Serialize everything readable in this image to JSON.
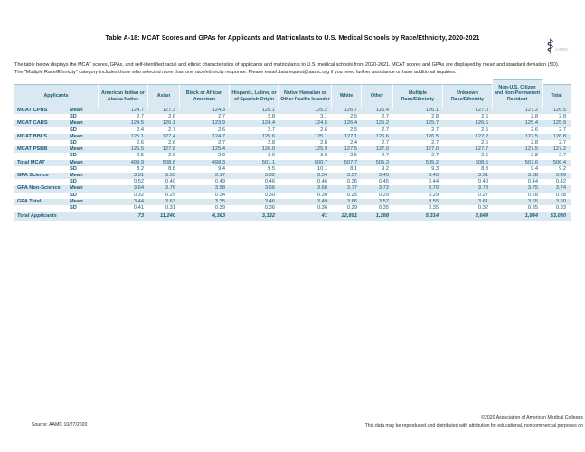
{
  "title": "Table A-18: MCAT Scores and GPAs for Applicants and Matriculants to U.S. Medical Schools by Race/Ethnicity, 2020-2021",
  "logo": {
    "text": "AAMC"
  },
  "intro": {
    "line1": "The table below displays the MCAT scores, GPAs, and self-identified racial and ethnic characteristics of applicants and matriculants to U.S. medical schools from 2020-2021. MCAT scores and GPAs are displayed by mean and standard deviation (SD).",
    "line2": "The \"Multiple Race/Ethnicity\" category includes those who selected more than one race/ethnicity response. Please email datarequest@aamc.org if you need further assistance or have additional inquiries."
  },
  "table": {
    "corner_header": "Applicants",
    "stat_labels": {
      "mean": "Mean",
      "sd": "SD"
    },
    "columns": [
      "American Indian or Alaska Native",
      "Asian",
      "Black or African American",
      "Hispanic, Latino, or of Spanish Origin",
      "Native Hawaiian or Other Pacific Islander",
      "White",
      "Other",
      "Multiple Race/Ethnicity",
      "Unknown Race/Ethnicity",
      "Non-U.S. Citizen and Non-Permanent Resident",
      "Total"
    ],
    "groups": [
      {
        "label": "MCAT CPBS",
        "mean": [
          "124.7",
          "127.3",
          "124.3",
          "125.1",
          "125.2",
          "126.7",
          "126.4",
          "126.1",
          "127.0",
          "127.2",
          "126.5"
        ],
        "sd": [
          "2.7",
          "2.6",
          "2.7",
          "2.8",
          "3.1",
          "2.5",
          "2.7",
          "2.8",
          "2.6",
          "2.8",
          "2.8"
        ]
      },
      {
        "label": "MCAT CARS",
        "mean": [
          "124.5",
          "126.1",
          "123.9",
          "124.4",
          "124.5",
          "126.4",
          "125.2",
          "125.7",
          "126.6",
          "125.4",
          "125.9"
        ],
        "sd": [
          "2.4",
          "2.7",
          "2.6",
          "2.7",
          "2.6",
          "2.5",
          "2.7",
          "2.7",
          "2.5",
          "2.6",
          "2.7"
        ]
      },
      {
        "label": "MCAT BBLS",
        "mean": [
          "125.1",
          "127.4",
          "124.7",
          "125.6",
          "125.1",
          "127.1",
          "126.6",
          "126.5",
          "127.2",
          "127.5",
          "126.8"
        ],
        "sd": [
          "2.6",
          "2.6",
          "2.7",
          "2.8",
          "2.8",
          "2.4",
          "2.7",
          "2.7",
          "2.5",
          "2.8",
          "2.7"
        ]
      },
      {
        "label": "MCAT PSBB",
        "mean": [
          "125.5",
          "127.8",
          "125.4",
          "126.0",
          "125.9",
          "127.5",
          "127.0",
          "127.0",
          "127.7",
          "127.5",
          "127.2"
        ],
        "sd": [
          "2.5",
          "2.6",
          "2.9",
          "2.9",
          "3.0",
          "2.5",
          "2.7",
          "2.7",
          "2.5",
          "2.8",
          "2.7"
        ]
      },
      {
        "label": "Total MCAT",
        "mean": [
          "499.9",
          "508.6",
          "498.3",
          "501.1",
          "500.7",
          "507.7",
          "505.3",
          "505.2",
          "508.5",
          "507.6",
          "506.4"
        ],
        "sd": [
          "8.2",
          "8.8",
          "9.4",
          "9.5",
          "10.1",
          "8.1",
          "9.2",
          "9.3",
          "8.3",
          "9.4",
          "9.2"
        ]
      },
      {
        "label": "GPA Science",
        "mean": [
          "3.31",
          "3.53",
          "3.17",
          "3.32",
          "3.34",
          "3.57",
          "3.45",
          "3.43",
          "3.51",
          "3.58",
          "3.49"
        ],
        "sd": [
          "0.52",
          "0.40",
          "0.49",
          "0.46",
          "0.46",
          "0.36",
          "0.45",
          "0.44",
          "0.40",
          "0.44",
          "0.42"
        ]
      },
      {
        "label": "GPA Non-Science",
        "mean": [
          "3.64",
          "3.76",
          "3.58",
          "3.66",
          "3.68",
          "3.77",
          "3.72",
          "3.70",
          "3.73",
          "3.75",
          "3.74"
        ],
        "sd": [
          "0.32",
          "0.25",
          "0.34",
          "0.30",
          "0.30",
          "0.25",
          "0.29",
          "0.29",
          "0.27",
          "0.28",
          "0.28"
        ]
      },
      {
        "label": "GPA Total",
        "mean": [
          "3.44",
          "3.63",
          "3.35",
          "3.46",
          "3.49",
          "3.66",
          "3.57",
          "3.55",
          "3.61",
          "3.65",
          "3.60"
        ],
        "sd": [
          "0.41",
          "0.31",
          "0.39",
          "0.36",
          "0.36",
          "0.29",
          "0.35",
          "0.35",
          "0.32",
          "0.35",
          "0.33"
        ]
      }
    ],
    "total_row": {
      "label": "Total Applicants",
      "values": [
        "73",
        "11,240",
        "4,363",
        "3,332",
        "41",
        "22,891",
        "1,288",
        "5,314",
        "2,644",
        "1,844",
        "53,030"
      ]
    }
  },
  "footer": {
    "source": "Source: AAMC 10/27/2020",
    "copyright": "©2020 Association of American Medical Colleges",
    "license": "This data may be reproduced and distributed with attribution for educational, noncommercial purposes on"
  },
  "colors": {
    "band": "#d9e8f1",
    "accent_border": "#9cc3d6",
    "text": "#1d5a72"
  }
}
